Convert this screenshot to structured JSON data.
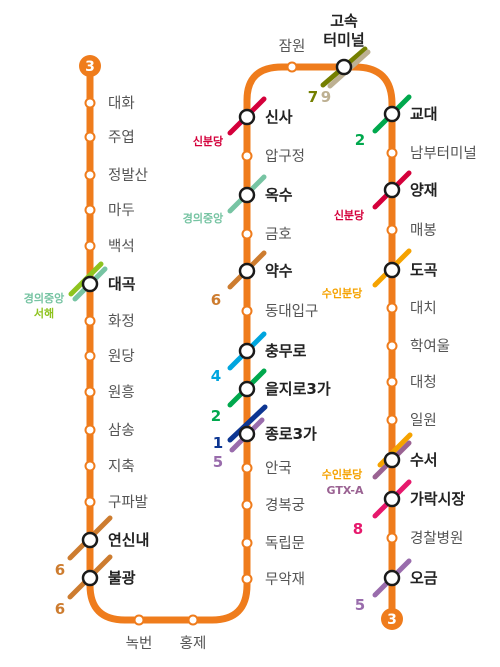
{
  "line_color": "#EF7C1C",
  "line_number": "3",
  "stations": [
    {
      "id": "daehwa",
      "name": "대화",
      "type": "regular"
    },
    {
      "id": "juyeop",
      "name": "주엽",
      "type": "regular"
    },
    {
      "id": "jeongbalsan",
      "name": "정발산",
      "type": "regular"
    },
    {
      "id": "madu",
      "name": "마두",
      "type": "regular"
    },
    {
      "id": "baekseok",
      "name": "백석",
      "type": "regular"
    },
    {
      "id": "daegok",
      "name": "대곡",
      "type": "transfer"
    },
    {
      "id": "hwajeong",
      "name": "화정",
      "type": "regular"
    },
    {
      "id": "wondang",
      "name": "원당",
      "type": "regular"
    },
    {
      "id": "wonheung",
      "name": "원흥",
      "type": "regular"
    },
    {
      "id": "samsong",
      "name": "삼송",
      "type": "regular"
    },
    {
      "id": "jichuk",
      "name": "지축",
      "type": "regular"
    },
    {
      "id": "gupabal",
      "name": "구파발",
      "type": "regular"
    },
    {
      "id": "yeonsinnae",
      "name": "연신내",
      "type": "transfer"
    },
    {
      "id": "bulgwang",
      "name": "불광",
      "type": "transfer"
    },
    {
      "id": "nokbeon",
      "name": "녹번",
      "type": "regular"
    },
    {
      "id": "hongje",
      "name": "홍제",
      "type": "regular"
    },
    {
      "id": "muakjae",
      "name": "무악재",
      "type": "regular"
    },
    {
      "id": "dongnimmun",
      "name": "독립문",
      "type": "regular"
    },
    {
      "id": "gyeongbokgung",
      "name": "경복궁",
      "type": "regular"
    },
    {
      "id": "anguk",
      "name": "안국",
      "type": "regular"
    },
    {
      "id": "jongno3ga",
      "name": "종로3가",
      "type": "transfer"
    },
    {
      "id": "euljiro3ga",
      "name": "을지로3가",
      "type": "transfer"
    },
    {
      "id": "chungmuro",
      "name": "충무로",
      "type": "transfer"
    },
    {
      "id": "dongdaeipgu",
      "name": "동대입구",
      "type": "regular"
    },
    {
      "id": "yaksu",
      "name": "약수",
      "type": "transfer"
    },
    {
      "id": "geumho",
      "name": "금호",
      "type": "regular"
    },
    {
      "id": "oksu",
      "name": "옥수",
      "type": "transfer"
    },
    {
      "id": "apgujeong",
      "name": "압구정",
      "type": "regular"
    },
    {
      "id": "sinsa",
      "name": "신사",
      "type": "transfer"
    },
    {
      "id": "jamwon",
      "name": "잠원",
      "type": "regular"
    },
    {
      "id": "express_bus_terminal",
      "name_line1": "고속",
      "name_line2": "터미널",
      "type": "transfer"
    },
    {
      "id": "gyodae",
      "name": "교대",
      "type": "transfer"
    },
    {
      "id": "nambu_terminal",
      "name": "남부터미널",
      "type": "regular"
    },
    {
      "id": "yangjae",
      "name": "양재",
      "type": "transfer"
    },
    {
      "id": "maebong",
      "name": "매봉",
      "type": "regular"
    },
    {
      "id": "dogok",
      "name": "도곡",
      "type": "transfer"
    },
    {
      "id": "daechi",
      "name": "대치",
      "type": "regular"
    },
    {
      "id": "hagyeoul",
      "name": "학여울",
      "type": "regular"
    },
    {
      "id": "daecheong",
      "name": "대청",
      "type": "regular"
    },
    {
      "id": "irwon",
      "name": "일원",
      "type": "regular"
    },
    {
      "id": "suseo",
      "name": "수서",
      "type": "transfer"
    },
    {
      "id": "garak_market",
      "name": "가락시장",
      "type": "transfer"
    },
    {
      "id": "police_hospital",
      "name": "경찰병원",
      "type": "regular"
    },
    {
      "id": "ogeum",
      "name": "오금",
      "type": "transfer"
    }
  ],
  "transfer_labels": {
    "daegok_1": "경의중앙",
    "daegok_2": "서해",
    "yeonsinnae": "6",
    "bulgwang": "6",
    "jongno3ga_1": "1",
    "jongno3ga_2": "5",
    "euljiro3ga": "2",
    "chungmuro": "4",
    "yaksu": "6",
    "oksu": "경의중앙",
    "sinsa": "신분당",
    "express_1": "7",
    "express_2": "9",
    "gyodae": "2",
    "yangjae": "신분당",
    "dogok": "수인분당",
    "suseo_1": "수인분당",
    "suseo_2": "GTX-A",
    "garak": "8",
    "ogeum": "5"
  },
  "line_colors": {
    "line1": "#0D3692",
    "line2": "#00A84D",
    "line4": "#00A5DE",
    "line5": "#996CAC",
    "line6": "#CD7C2F",
    "line7": "#747F00",
    "line8": "#E6186C",
    "line9": "#BDB092",
    "gyeongui_jungang": "#77C4A3",
    "seohae": "#8FC31F",
    "sinbundang": "#D4003B",
    "suin_bundang": "#F5A200",
    "gtx_a": "#9A6292"
  }
}
